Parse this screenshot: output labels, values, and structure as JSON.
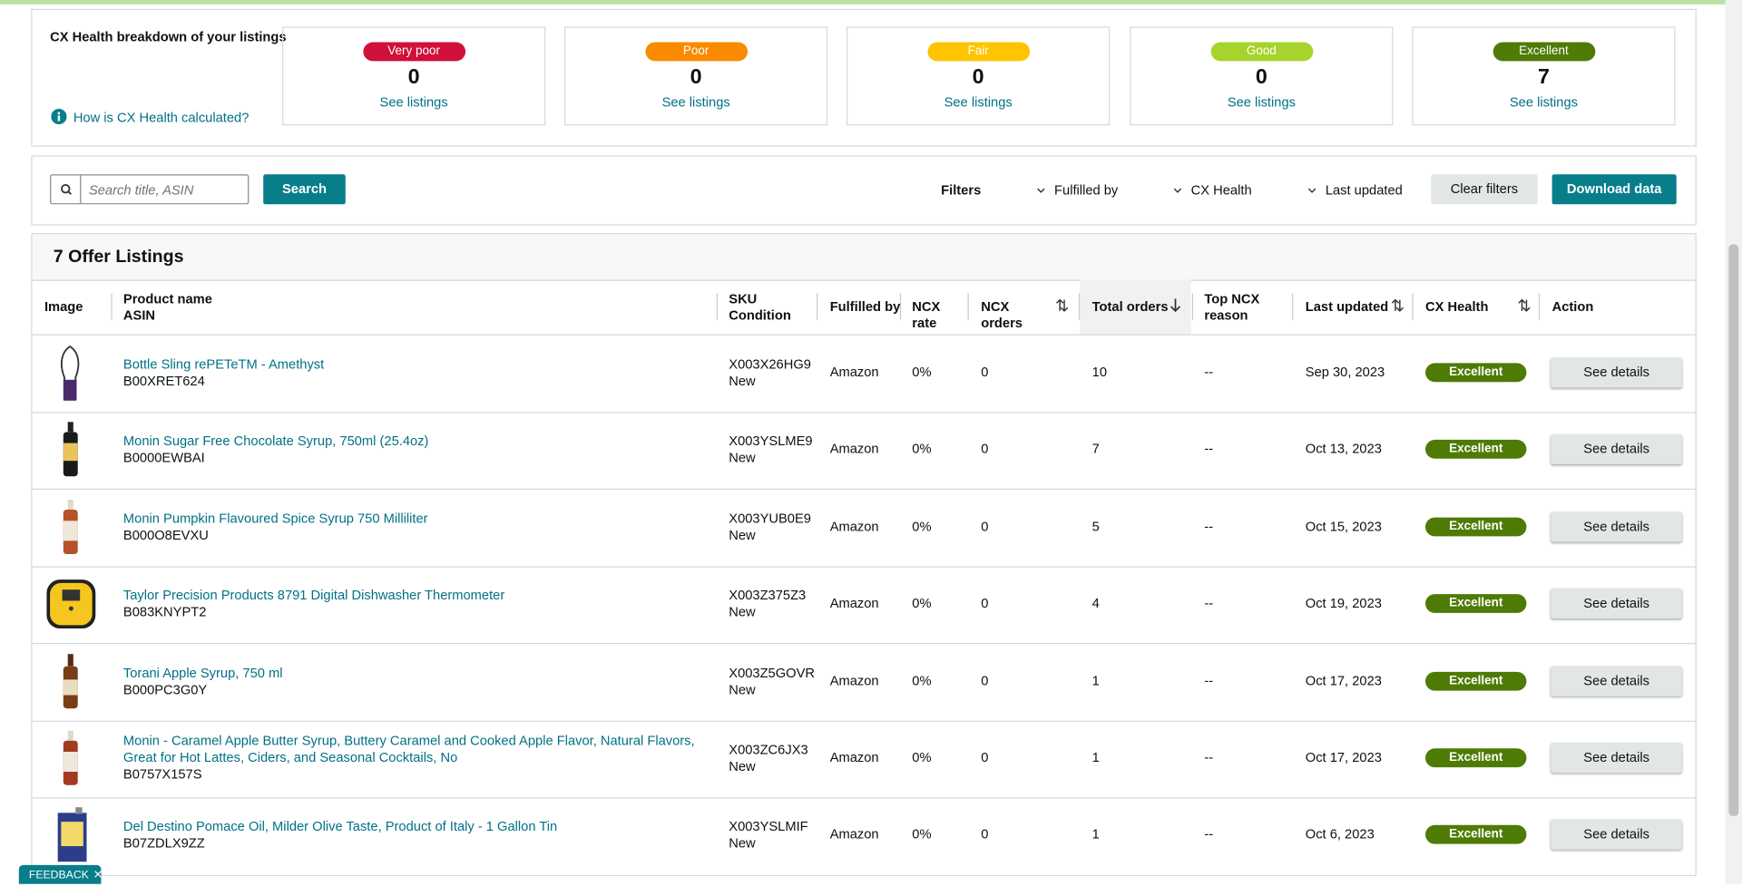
{
  "cx_health": {
    "title": "CX Health breakdown of your listings",
    "help_link": "How is CX Health calculated?",
    "buckets": [
      {
        "label": "Very poor",
        "count": "0",
        "link": "See listings"
      },
      {
        "label": "Poor",
        "count": "0",
        "link": "See listings"
      },
      {
        "label": "Fair",
        "count": "0",
        "link": "See listings"
      },
      {
        "label": "Good",
        "count": "0",
        "link": "See listings"
      },
      {
        "label": "Excellent",
        "count": "7",
        "link": "See listings"
      }
    ]
  },
  "toolbar": {
    "search_placeholder": "Search title, ASIN",
    "search_button": "Search",
    "filters_label": "Filters",
    "filters": [
      "Fulfilled by",
      "CX Health",
      "Last updated"
    ],
    "clear_button": "Clear filters",
    "download_button": "Download data"
  },
  "listings": {
    "title": "7 Offer Listings",
    "columns": [
      {
        "label": "Image"
      },
      {
        "label": "Product name",
        "sub": "ASIN"
      },
      {
        "label": "SKU",
        "sub": "Condition"
      },
      {
        "label": "Fulfilled by"
      },
      {
        "label": "NCX rate"
      },
      {
        "label": "NCX orders"
      },
      {
        "label": "Total orders"
      },
      {
        "label": "Top NCX reason"
      },
      {
        "label": "Last updated"
      },
      {
        "label": "CX Health"
      },
      {
        "label": "Action"
      }
    ],
    "rows": [
      {
        "product": "Bottle Sling rePETeTM - Amethyst",
        "asin": "B00XRET624",
        "sku": "X003X26HG9",
        "condition": "New",
        "fulfilled_by": "Amazon",
        "ncx_rate": "0%",
        "ncx_orders": "0",
        "total_orders": "10",
        "top_ncx_reason": "--",
        "last_updated": "Sep 30, 2023",
        "cx_health": "Excellent",
        "action": "See details"
      },
      {
        "product": "Monin Sugar Free Chocolate Syrup, 750ml (25.4oz)",
        "asin": "B0000EWBAI",
        "sku": "X003YSLME9",
        "condition": "New",
        "fulfilled_by": "Amazon",
        "ncx_rate": "0%",
        "ncx_orders": "0",
        "total_orders": "7",
        "top_ncx_reason": "--",
        "last_updated": "Oct 13, 2023",
        "cx_health": "Excellent",
        "action": "See details"
      },
      {
        "product": "Monin Pumpkin Flavoured Spice Syrup 750 Milliliter",
        "asin": "B000O8EVXU",
        "sku": "X003YUB0E9",
        "condition": "New",
        "fulfilled_by": "Amazon",
        "ncx_rate": "0%",
        "ncx_orders": "0",
        "total_orders": "5",
        "top_ncx_reason": "--",
        "last_updated": "Oct 15, 2023",
        "cx_health": "Excellent",
        "action": "See details"
      },
      {
        "product": "Taylor Precision Products 8791 Digital Dishwasher Thermometer",
        "asin": "B083KNYPT2",
        "sku": "X003Z375Z3",
        "condition": "New",
        "fulfilled_by": "Amazon",
        "ncx_rate": "0%",
        "ncx_orders": "0",
        "total_orders": "4",
        "top_ncx_reason": "--",
        "last_updated": "Oct 19, 2023",
        "cx_health": "Excellent",
        "action": "See details"
      },
      {
        "product": "Torani Apple Syrup, 750 ml",
        "asin": "B000PC3G0Y",
        "sku": "X003Z5GOVR",
        "condition": "New",
        "fulfilled_by": "Amazon",
        "ncx_rate": "0%",
        "ncx_orders": "0",
        "total_orders": "1",
        "top_ncx_reason": "--",
        "last_updated": "Oct 17, 2023",
        "cx_health": "Excellent",
        "action": "See details"
      },
      {
        "product": "Monin - Caramel Apple Butter Syrup, Buttery Caramel and Cooked Apple Flavor, Natural Flavors, Great for Hot Lattes, Ciders, and Seasonal Cocktails, No",
        "asin": "B0757X157S",
        "sku": "X003ZC6JX3",
        "condition": "New",
        "fulfilled_by": "Amazon",
        "ncx_rate": "0%",
        "ncx_orders": "0",
        "total_orders": "1",
        "top_ncx_reason": "--",
        "last_updated": "Oct 17, 2023",
        "cx_health": "Excellent",
        "action": "See details"
      },
      {
        "product": "Del Destino Pomace Oil, Milder Olive Taste, Product of Italy - 1 Gallon Tin",
        "asin": "B07ZDLX9ZZ",
        "sku": "X003YSLMIF",
        "condition": "New",
        "fulfilled_by": "Amazon",
        "ncx_rate": "0%",
        "ncx_orders": "0",
        "total_orders": "1",
        "top_ncx_reason": "--",
        "last_updated": "Oct 6, 2023",
        "cx_health": "Excellent",
        "action": "See details"
      }
    ]
  },
  "feedback": "FEEDBACK"
}
